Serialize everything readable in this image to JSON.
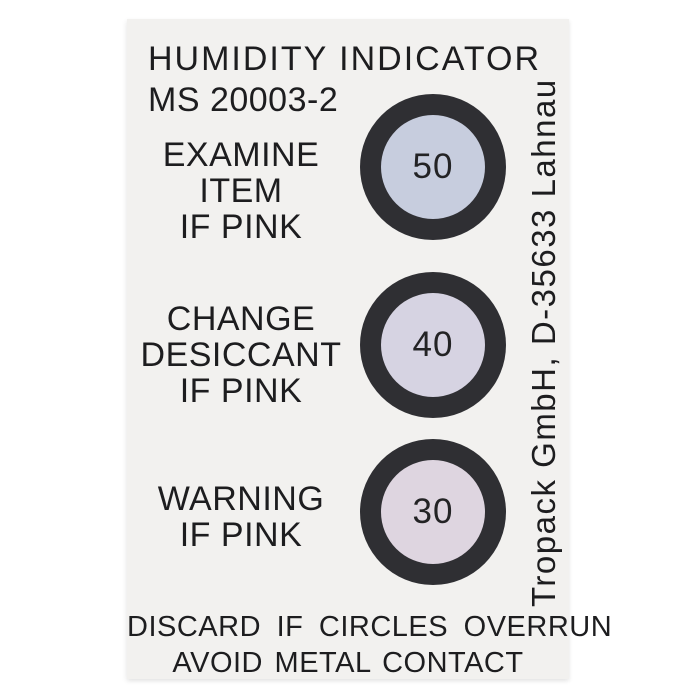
{
  "card": {
    "background_color": "#f2f1ef",
    "ring_color": "#2f2f33",
    "text_color": "#1d1d1f",
    "title": "HUMIDITY INDICATOR",
    "model": "MS 20003-2",
    "rows": [
      {
        "lines": [
          "EXAMINE",
          "ITEM",
          "IF PINK"
        ],
        "value": "50",
        "spot_color": "#c7cdde"
      },
      {
        "lines": [
          "CHANGE",
          "DESICCANT",
          "IF PINK"
        ],
        "value": "40",
        "spot_color": "#d6d3e2"
      },
      {
        "lines": [
          "WARNING",
          "IF PINK"
        ],
        "value": "30",
        "spot_color": "#ded5e0"
      }
    ],
    "side_text": "Tropack GmbH, D-35633 Lahnau",
    "footer": {
      "line1": "DISCARD IF CIRCLES OVERRUN",
      "line2": "AVOID METAL CONTACT"
    }
  }
}
